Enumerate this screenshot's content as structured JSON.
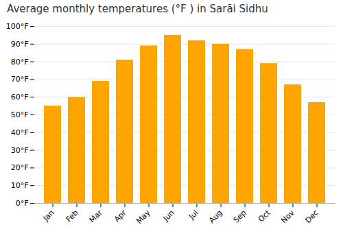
{
  "chart_data": {
    "type": "bar",
    "title": "Average monthly temperatures (°F ) in Sarāi Sidhu",
    "categories": [
      "Jan",
      "Feb",
      "Mar",
      "Apr",
      "May",
      "Jun",
      "Jul",
      "Aug",
      "Sep",
      "Oct",
      "Nov",
      "Dec"
    ],
    "values": [
      55,
      60,
      69,
      81,
      89,
      95,
      92,
      90,
      87,
      79,
      67,
      57
    ],
    "color": "#FFA500",
    "ylim": [
      0,
      100
    ],
    "yticks": [
      {
        "value": 0,
        "label": "0°F"
      },
      {
        "value": 10,
        "label": "10°F"
      },
      {
        "value": 20,
        "label": "20°F"
      },
      {
        "value": 30,
        "label": "30°F"
      },
      {
        "value": 40,
        "label": "40°F"
      },
      {
        "value": 50,
        "label": "50°F"
      },
      {
        "value": 60,
        "label": "60°F"
      },
      {
        "value": 70,
        "label": "70°F"
      },
      {
        "value": 80,
        "label": "80°F"
      },
      {
        "value": 90,
        "label": "90°F"
      },
      {
        "value": 100,
        "label": "100°F"
      }
    ],
    "grid": true
  }
}
